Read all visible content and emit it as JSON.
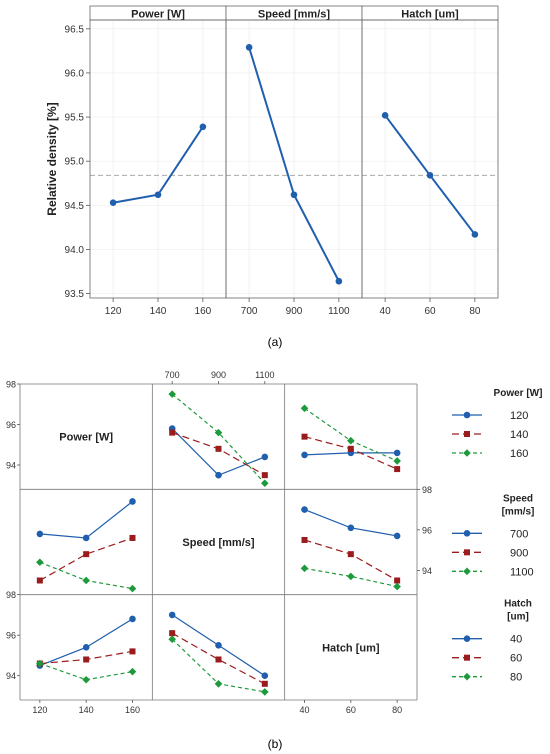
{
  "caption_a": "(a)",
  "caption_b": "(b)",
  "colors": {
    "main_line": "#1f5fad",
    "blue": "#1f5fad",
    "red": "#9b1c1c",
    "green": "#1e9a3c",
    "ref_line": "#aaaaaa",
    "strip_bg": "#ffffff"
  },
  "chart_data": [
    {
      "type": "line",
      "title": "",
      "ylabel": "Relative density [%]",
      "ylim": [
        93.45,
        96.6
      ],
      "yticks": [
        "93.5",
        "94.0",
        "94.5",
        "95.0",
        "95.5",
        "96.0",
        "96.5"
      ],
      "reference_line": 94.84,
      "grid": true,
      "panels": [
        {
          "strip": "Power [W]",
          "categories": [
            "120",
            "140",
            "160"
          ],
          "values": [
            94.53,
            94.62,
            95.39
          ]
        },
        {
          "strip": "Speed [mm/s]",
          "categories": [
            "700",
            "900",
            "1100"
          ],
          "values": [
            96.29,
            94.62,
            93.64
          ]
        },
        {
          "strip": "Hatch  [um]",
          "categories": [
            "40",
            "60",
            "80"
          ],
          "values": [
            95.52,
            94.84,
            94.17
          ]
        }
      ]
    },
    {
      "type": "line",
      "title": "",
      "variables": [
        "Power [W]",
        "Speed [mm/s]",
        "Hatch  [um]"
      ],
      "x_levels": [
        [
          "120",
          "140",
          "160"
        ],
        [
          "700",
          "900",
          "1100"
        ],
        [
          "40",
          "60",
          "80"
        ]
      ],
      "ylim": [
        92.8,
        98.0
      ],
      "yticks": [
        "94",
        "96",
        "98"
      ],
      "cells": [
        {
          "row": 0,
          "col": 1,
          "series": [
            {
              "values": [
                95.8,
                93.5,
                94.4
              ]
            },
            {
              "values": [
                95.6,
                94.8,
                93.5
              ]
            },
            {
              "values": [
                97.5,
                95.6,
                93.1
              ]
            }
          ]
        },
        {
          "row": 0,
          "col": 2,
          "series": [
            {
              "values": [
                94.5,
                94.6,
                94.6
              ]
            },
            {
              "values": [
                95.4,
                94.8,
                93.8
              ]
            },
            {
              "values": [
                96.8,
                95.2,
                94.2
              ]
            }
          ]
        },
        {
          "row": 1,
          "col": 0,
          "series": [
            {
              "values": [
                95.8,
                95.6,
                97.4
              ]
            },
            {
              "values": [
                93.5,
                94.8,
                95.6
              ]
            },
            {
              "values": [
                94.4,
                93.5,
                93.1
              ]
            }
          ]
        },
        {
          "row": 1,
          "col": 2,
          "series": [
            {
              "values": [
                97.0,
                96.1,
                95.7
              ]
            },
            {
              "values": [
                95.5,
                94.8,
                93.5
              ]
            },
            {
              "values": [
                94.1,
                93.7,
                93.2
              ]
            }
          ]
        },
        {
          "row": 2,
          "col": 0,
          "series": [
            {
              "values": [
                94.5,
                95.4,
                96.8
              ]
            },
            {
              "values": [
                94.6,
                94.8,
                95.2
              ]
            },
            {
              "values": [
                94.6,
                93.8,
                94.2
              ]
            }
          ]
        },
        {
          "row": 2,
          "col": 1,
          "series": [
            {
              "values": [
                97.0,
                95.5,
                94.0
              ]
            },
            {
              "values": [
                96.1,
                94.8,
                93.6
              ]
            },
            {
              "values": [
                95.8,
                93.6,
                93.2
              ]
            }
          ]
        }
      ],
      "legends": [
        {
          "title": [
            "Power [W]"
          ],
          "entries": [
            "120",
            "140",
            "160"
          ]
        },
        {
          "title": [
            "Speed",
            "[mm/s]"
          ],
          "entries": [
            "700",
            "900",
            "1100"
          ]
        },
        {
          "title": [
            "Hatch",
            "[um]"
          ],
          "entries": [
            "40",
            "60",
            "80"
          ]
        }
      ]
    }
  ]
}
